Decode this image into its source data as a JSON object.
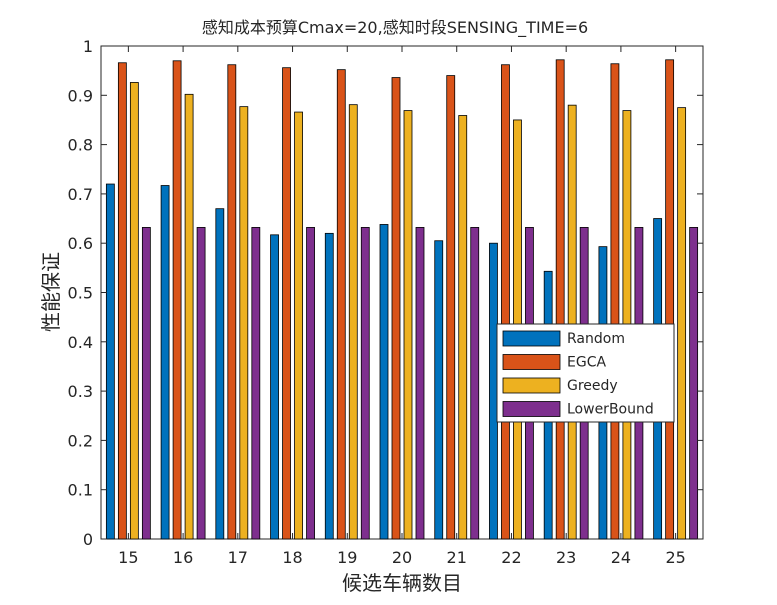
{
  "chart_data": {
    "type": "bar",
    "title": "感知成本预算Cmax=20,感知时段SENSING_TIME=6",
    "xlabel": "候选车辆数目",
    "ylabel": "性能保证",
    "categories": [
      "15",
      "16",
      "17",
      "18",
      "19",
      "20",
      "21",
      "22",
      "23",
      "24",
      "25"
    ],
    "ylim": [
      0,
      1
    ],
    "yticks": [
      "0",
      "0.1",
      "0.2",
      "0.3",
      "0.4",
      "0.5",
      "0.6",
      "0.7",
      "0.8",
      "0.9",
      "1"
    ],
    "grid": false,
    "legend_position": "lower-right",
    "series": [
      {
        "name": "Random",
        "color": "#0072BD",
        "values": [
          0.72,
          0.717,
          0.67,
          0.617,
          0.62,
          0.638,
          0.605,
          0.6,
          0.543,
          0.593,
          0.65
        ]
      },
      {
        "name": "EGCA",
        "color": "#D95319",
        "values": [
          0.966,
          0.97,
          0.962,
          0.956,
          0.952,
          0.936,
          0.94,
          0.962,
          0.972,
          0.964,
          0.972
        ]
      },
      {
        "name": "Greedy",
        "color": "#EDB120",
        "values": [
          0.926,
          0.902,
          0.877,
          0.866,
          0.881,
          0.869,
          0.859,
          0.85,
          0.88,
          0.869,
          0.875
        ]
      },
      {
        "name": "LowerBound",
        "color": "#7E2F8E",
        "values": [
          0.632,
          0.632,
          0.632,
          0.632,
          0.632,
          0.632,
          0.632,
          0.632,
          0.632,
          0.632,
          0.632
        ]
      }
    ]
  }
}
